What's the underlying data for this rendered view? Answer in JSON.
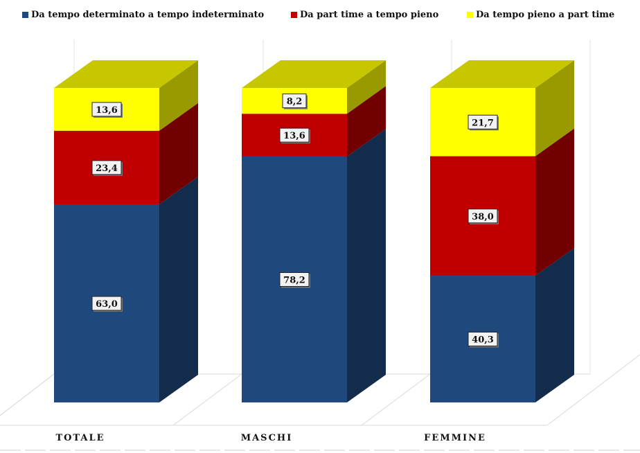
{
  "chart_data": {
    "type": "bar",
    "stacked": true,
    "three_d": true,
    "categories": [
      "TOTALE",
      "MASCHI",
      "FEMMINE"
    ],
    "series": [
      {
        "name": "Da tempo determinato a tempo indeterminato",
        "color": "#1F497D",
        "values": [
          63.0,
          78.2,
          40.3
        ],
        "labels": [
          "63,0",
          "78,2",
          "40,3"
        ]
      },
      {
        "name": "Da part time a tempo pieno",
        "color": "#C00000",
        "values": [
          23.4,
          13.6,
          38.0
        ],
        "labels": [
          "23,4",
          "13,6",
          "38,0"
        ]
      },
      {
        "name": "Da tempo pieno a part time",
        "color": "#FFFF00",
        "values": [
          13.6,
          8.2,
          21.7
        ],
        "labels": [
          "13,6",
          "8,2",
          "21,7"
        ]
      }
    ],
    "ylim": [
      0,
      100
    ],
    "legend_position": "top",
    "grid": false
  }
}
